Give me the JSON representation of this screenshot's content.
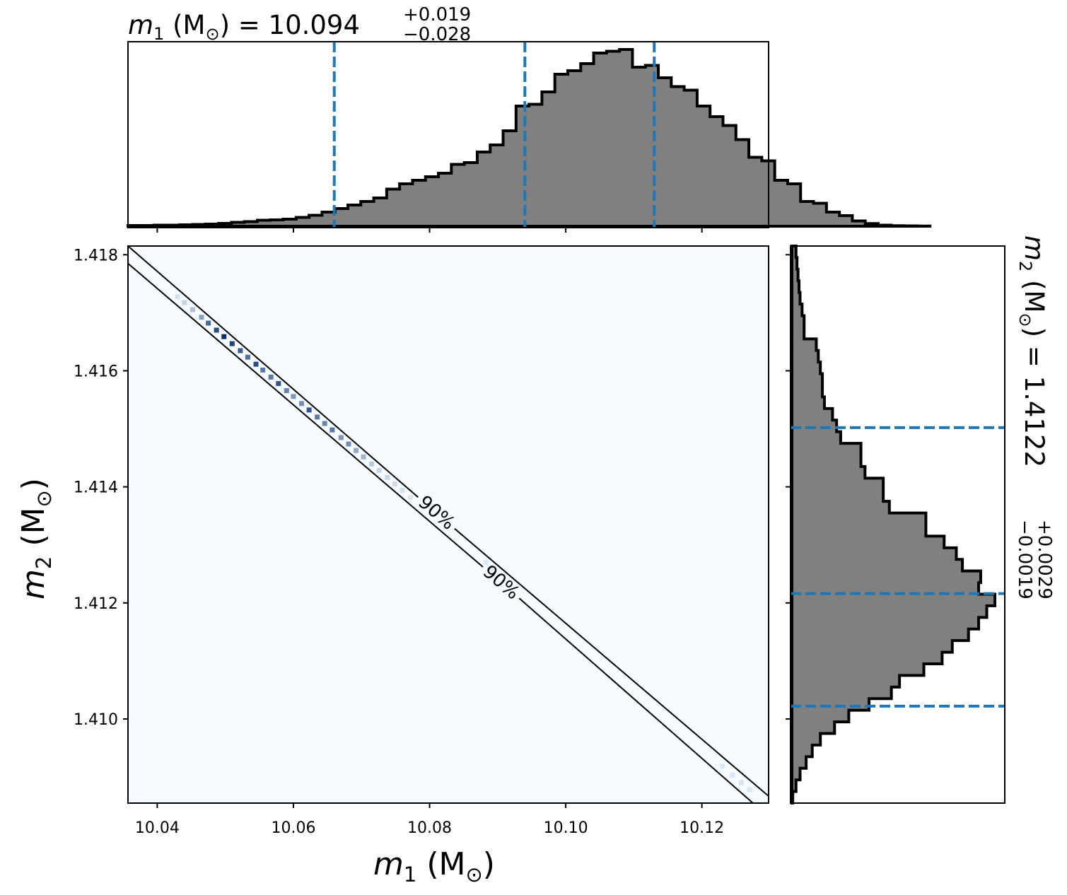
{
  "chart_data": [
    {
      "type": "histogram",
      "panel": "m1-marginal",
      "title": {
        "symbol": "m",
        "subscript": "1",
        "unit": "(M",
        "unit_symbol": "⊙",
        "unit_close": ")",
        "equals": "=",
        "value": "10.094",
        "upper": "+0.019",
        "lower": "−0.028"
      },
      "xlim": [
        10.0357,
        10.1298
      ],
      "quantile_lines": [
        10.066,
        10.094,
        10.113
      ],
      "bin_edges_start": 10.0357,
      "bin_width": 0.0019,
      "counts": [
        0.004,
        0.004,
        0.006,
        0.006,
        0.008,
        0.01,
        0.012,
        0.016,
        0.022,
        0.026,
        0.034,
        0.036,
        0.04,
        0.05,
        0.062,
        0.08,
        0.1,
        0.12,
        0.14,
        0.16,
        0.21,
        0.24,
        0.26,
        0.28,
        0.3,
        0.35,
        0.36,
        0.42,
        0.46,
        0.54,
        0.68,
        0.69,
        0.76,
        0.86,
        0.88,
        0.92,
        0.98,
        0.99,
        1.0,
        0.9,
        0.91,
        0.84,
        0.79,
        0.77,
        0.68,
        0.62,
        0.57,
        0.49,
        0.39,
        0.37,
        0.26,
        0.24,
        0.14,
        0.13,
        0.08,
        0.06,
        0.03,
        0.015,
        0.006,
        0.003,
        0.002,
        0.001
      ],
      "colors": {
        "fill": "#808080",
        "edge": "#000000",
        "quantile": "#1f77b4"
      }
    },
    {
      "type": "heatmap",
      "panel": "joint",
      "xlabel": {
        "symbol": "m",
        "subscript": "1",
        "unit": "(M",
        "unit_symbol": "⊙",
        "unit_close": ")"
      },
      "ylabel": {
        "symbol": "m",
        "subscript": "2",
        "unit": "(M",
        "unit_symbol": "⊙",
        "unit_close": ")"
      },
      "xlim": [
        10.0357,
        10.1298
      ],
      "ylim": [
        1.40855,
        1.41815
      ],
      "xticks": [
        "10.04",
        "10.06",
        "10.08",
        "10.10",
        "10.12"
      ],
      "xtick_values": [
        10.04,
        10.06,
        10.08,
        10.1,
        10.12
      ],
      "yticks": [
        "1.410",
        "1.412",
        "1.414",
        "1.416",
        "1.418"
      ],
      "ytick_values": [
        1.41,
        1.412,
        1.414,
        1.416,
        1.418
      ],
      "contour_lines": [
        {
          "label": "90%",
          "points": [
            [
              10.0357,
              1.41815
            ],
            [
              10.1298,
              1.40867
            ]
          ],
          "label_at": [
            10.081,
            1.41355
          ]
        },
        {
          "label": "90%",
          "points": [
            [
              10.0357,
              1.41785
            ],
            [
              10.1275,
              1.40855
            ]
          ],
          "label_at": [
            10.0905,
            1.41235
          ]
        }
      ],
      "ridge": {
        "start": [
          10.04,
          1.41758
        ],
        "end": [
          10.128,
          1.40868
        ]
      },
      "ridge_cells": [
        [
          10.043,
          0.06
        ],
        [
          10.044,
          0.12
        ],
        [
          10.0452,
          0.22
        ],
        [
          10.0465,
          0.4
        ],
        [
          10.0475,
          0.7
        ],
        [
          10.0487,
          0.85
        ],
        [
          10.0498,
          1.0
        ],
        [
          10.051,
          0.9
        ],
        [
          10.0522,
          0.75
        ],
        [
          10.0533,
          0.65
        ],
        [
          10.0545,
          0.85
        ],
        [
          10.0555,
          0.6
        ],
        [
          10.0567,
          0.6
        ],
        [
          10.0578,
          0.8
        ],
        [
          10.059,
          0.55
        ],
        [
          10.06,
          0.45
        ],
        [
          10.0612,
          0.5
        ],
        [
          10.0623,
          0.8
        ],
        [
          10.0635,
          0.6
        ],
        [
          10.0646,
          0.55
        ],
        [
          10.0657,
          0.6
        ],
        [
          10.067,
          0.45
        ],
        [
          10.0681,
          0.5
        ],
        [
          10.0692,
          0.35
        ],
        [
          10.0703,
          0.3
        ],
        [
          10.0715,
          0.18
        ],
        [
          10.0726,
          0.12
        ],
        [
          10.0738,
          0.12
        ],
        [
          10.0749,
          0.09
        ],
        [
          10.076,
          0.05
        ],
        [
          10.0772,
          0.03
        ],
        [
          10.0883,
          0.02
        ],
        [
          10.0893,
          0.02
        ],
        [
          10.123,
          0.02
        ],
        [
          10.1245,
          0.03
        ],
        [
          10.1258,
          0.04
        ],
        [
          10.127,
          0.03
        ]
      ],
      "colors": {
        "background": "#f7fbff",
        "dark": "#08306b",
        "contour": "#000000"
      }
    },
    {
      "type": "histogram",
      "panel": "m2-marginal",
      "orientation": "horizontal",
      "title": {
        "symbol": "m",
        "subscript": "2",
        "unit": "(M",
        "unit_symbol": "⊙",
        "unit_close": ")",
        "equals": "=",
        "value": "1.4122",
        "upper": "+0.0029",
        "lower": "−0.0019"
      },
      "ylim": [
        1.40855,
        1.41815
      ],
      "quantile_lines": [
        1.41502,
        1.41216,
        1.41022
      ],
      "bin_edges_start": 1.40855,
      "bin_width": 0.0002,
      "counts": [
        0.004,
        0.02,
        0.04,
        0.07,
        0.1,
        0.14,
        0.21,
        0.28,
        0.38,
        0.49,
        0.53,
        0.65,
        0.74,
        0.79,
        0.87,
        0.92,
        0.96,
        1.0,
        0.92,
        0.93,
        0.84,
        0.81,
        0.75,
        0.66,
        0.66,
        0.48,
        0.45,
        0.45,
        0.36,
        0.34,
        0.34,
        0.24,
        0.22,
        0.2,
        0.16,
        0.15,
        0.15,
        0.14,
        0.13,
        0.12,
        0.06,
        0.06,
        0.05,
        0.04,
        0.035,
        0.03,
        0.025,
        0.02
      ],
      "colors": {
        "fill": "#808080",
        "edge": "#000000",
        "quantile": "#1f77b4"
      }
    }
  ]
}
